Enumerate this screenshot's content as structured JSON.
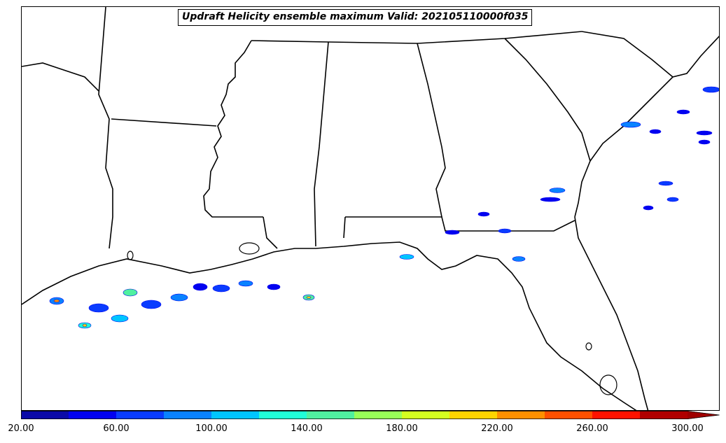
{
  "title": "Updraft Helicity ensemble maximum Valid: 202105110000f035",
  "colorbar": {
    "colors": [
      "#0b0aa8",
      "#0202f0",
      "#0a3cff",
      "#0a82ff",
      "#00c5ff",
      "#20ffd8",
      "#50f0a0",
      "#98ff58",
      "#d4ff20",
      "#ffd400",
      "#ff9000",
      "#ff5000",
      "#ff1200",
      "#b00000"
    ],
    "extend_color": "#a00000",
    "tick_labels": [
      "20.00",
      "60.00",
      "100.00",
      "140.00",
      "180.00",
      "220.00",
      "260.00",
      "300.00"
    ]
  }
}
